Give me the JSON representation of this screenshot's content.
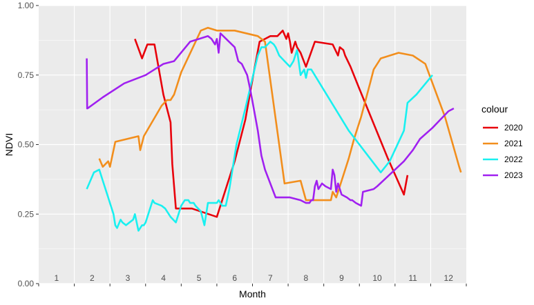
{
  "chart_data": {
    "type": "line",
    "xlabel": "Month",
    "ylabel": "NDVI",
    "legend_title": "colour",
    "legend_position": "right",
    "grid": true,
    "xlim": [
      0.5,
      12.5
    ],
    "ylim": [
      0,
      1
    ],
    "x_month_labels": [
      "1",
      "2",
      "3",
      "4",
      "5",
      "6",
      "7",
      "8",
      "9",
      "10",
      "11",
      "12"
    ],
    "y_ticks": [
      0,
      0.25,
      0.5,
      0.75,
      1
    ],
    "y_tick_labels": [
      "0.00",
      "0.25",
      "0.50",
      "0.75",
      "1.00"
    ],
    "series": [
      {
        "name": "2020",
        "color": "#e8000b",
        "x": [
          3.2,
          3.4,
          3.55,
          3.75,
          4.0,
          4.2,
          4.25,
          4.35,
          4.8,
          5.5,
          6.0,
          6.3,
          6.55,
          6.7,
          6.85,
          7.0,
          7.1,
          7.2,
          7.35,
          7.45,
          7.5,
          7.55,
          7.6,
          7.65,
          7.7,
          7.75,
          7.85,
          8.0,
          8.25,
          8.75,
          8.9,
          8.95,
          9.05,
          9.1,
          9.25,
          9.5,
          10.3,
          10.75,
          10.85
        ],
        "y": [
          0.88,
          0.81,
          0.86,
          0.86,
          0.68,
          0.58,
          0.43,
          0.27,
          0.27,
          0.24,
          0.44,
          0.59,
          0.77,
          0.87,
          0.88,
          0.89,
          0.89,
          0.89,
          0.91,
          0.88,
          0.9,
          0.87,
          0.83,
          0.85,
          0.87,
          0.85,
          0.83,
          0.78,
          0.87,
          0.86,
          0.82,
          0.85,
          0.84,
          0.82,
          0.78,
          0.7,
          0.45,
          0.32,
          0.39
        ]
      },
      {
        "name": "2021",
        "color": "#f28e1c",
        "x": [
          2.2,
          2.3,
          2.45,
          2.5,
          2.65,
          3.3,
          3.35,
          3.45,
          3.95,
          4.1,
          4.2,
          4.3,
          4.5,
          5.05,
          5.25,
          5.5,
          6.0,
          6.65,
          6.85,
          7.4,
          7.85,
          8.0,
          8.6,
          8.7,
          8.75,
          8.85,
          9.0,
          9.2,
          9.35,
          9.55,
          9.8,
          9.9,
          10.1,
          10.6,
          11.0,
          11.35,
          11.9,
          12.3,
          12.35
        ],
        "y": [
          0.45,
          0.42,
          0.44,
          0.42,
          0.51,
          0.53,
          0.48,
          0.53,
          0.64,
          0.66,
          0.66,
          0.68,
          0.76,
          0.91,
          0.92,
          0.91,
          0.91,
          0.89,
          0.87,
          0.36,
          0.37,
          0.3,
          0.3,
          0.3,
          0.33,
          0.31,
          0.37,
          0.45,
          0.52,
          0.6,
          0.72,
          0.77,
          0.81,
          0.83,
          0.82,
          0.79,
          0.6,
          0.42,
          0.4
        ]
      },
      {
        "name": "2022",
        "color": "#19f0f0",
        "x": [
          1.85,
          1.95,
          2.05,
          2.2,
          2.3,
          2.45,
          2.6,
          2.65,
          2.7,
          2.8,
          2.85,
          2.95,
          3.05,
          3.15,
          3.2,
          3.3,
          3.4,
          3.45,
          3.5,
          3.7,
          3.75,
          3.95,
          4.05,
          4.2,
          4.35,
          4.5,
          4.6,
          4.7,
          4.75,
          4.85,
          4.9,
          5.05,
          5.15,
          5.25,
          5.3,
          5.4,
          5.5,
          5.55,
          5.65,
          5.75,
          5.85,
          6.05,
          6.3,
          6.5,
          6.65,
          6.75,
          6.85,
          7.0,
          7.1,
          7.15,
          7.25,
          7.4,
          7.55,
          7.65,
          7.75,
          7.85,
          7.95,
          8.0,
          8.05,
          8.15,
          9.2,
          10.1,
          10.35,
          10.75,
          10.85,
          11.1,
          11.55
        ],
        "y": [
          0.34,
          0.37,
          0.4,
          0.41,
          0.37,
          0.31,
          0.25,
          0.21,
          0.2,
          0.23,
          0.22,
          0.21,
          0.22,
          0.23,
          0.25,
          0.19,
          0.21,
          0.21,
          0.22,
          0.3,
          0.29,
          0.28,
          0.27,
          0.24,
          0.22,
          0.28,
          0.3,
          0.3,
          0.29,
          0.29,
          0.28,
          0.26,
          0.21,
          0.29,
          0.29,
          0.29,
          0.29,
          0.3,
          0.28,
          0.28,
          0.34,
          0.5,
          0.63,
          0.74,
          0.82,
          0.85,
          0.85,
          0.87,
          0.86,
          0.85,
          0.82,
          0.8,
          0.78,
          0.8,
          0.84,
          0.75,
          0.77,
          0.74,
          0.77,
          0.77,
          0.55,
          0.4,
          0.44,
          0.55,
          0.65,
          0.68,
          0.75
        ]
      },
      {
        "name": "2023",
        "color": "#a020f0",
        "x": [
          1.85,
          1.86,
          1.87,
          2.3,
          2.9,
          3.5,
          3.75,
          4.0,
          4.3,
          4.75,
          5.0,
          5.25,
          5.35,
          5.45,
          5.5,
          5.55,
          5.6,
          6.0,
          6.1,
          6.2,
          6.35,
          6.45,
          6.65,
          6.75,
          6.85,
          7.15,
          7.55,
          7.85,
          8.0,
          8.1,
          8.15,
          8.2,
          8.25,
          8.3,
          8.35,
          8.45,
          8.55,
          8.7,
          8.75,
          8.8,
          8.85,
          8.9,
          9.0,
          9.15,
          9.25,
          9.3,
          9.4,
          9.55,
          9.6,
          9.9,
          10.0,
          10.25,
          10.5,
          10.75,
          11.0,
          11.2,
          11.55,
          12.0,
          12.15
        ],
        "y": [
          0.81,
          0.63,
          0.63,
          0.67,
          0.72,
          0.75,
          0.77,
          0.79,
          0.8,
          0.87,
          0.88,
          0.89,
          0.88,
          0.86,
          0.88,
          0.83,
          0.9,
          0.85,
          0.8,
          0.79,
          0.75,
          0.69,
          0.55,
          0.46,
          0.41,
          0.31,
          0.31,
          0.3,
          0.29,
          0.29,
          0.3,
          0.3,
          0.35,
          0.37,
          0.34,
          0.36,
          0.35,
          0.34,
          0.41,
          0.39,
          0.33,
          0.36,
          0.32,
          0.31,
          0.3,
          0.3,
          0.29,
          0.28,
          0.33,
          0.34,
          0.35,
          0.38,
          0.41,
          0.44,
          0.48,
          0.52,
          0.56,
          0.62,
          0.63
        ]
      }
    ]
  }
}
